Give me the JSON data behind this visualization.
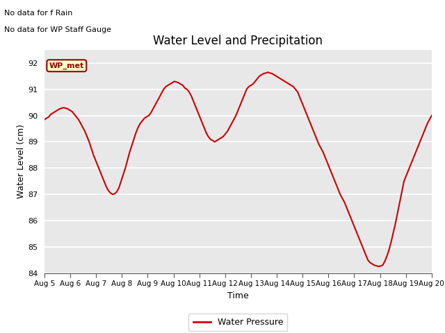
{
  "title": "Water Level and Precipitation",
  "xlabel": "Time",
  "ylabel": "Water Level (cm)",
  "ylim": [
    84.0,
    92.5
  ],
  "yticks": [
    84.0,
    85.0,
    86.0,
    87.0,
    88.0,
    89.0,
    90.0,
    91.0,
    92.0
  ],
  "line_color": "#cc0000",
  "line_width": 1.5,
  "bg_color": "#e8e8e8",
  "fig_bg_color": "#ffffff",
  "annotations": [
    "No data for f Rain",
    "No data for WP Staff Gauge"
  ],
  "legend_label": "Water Pressure",
  "legend_box_color": "#ffffcc",
  "legend_box_edge_color": "#990000",
  "wp_met_label": "WP_met",
  "x_tick_labels": [
    "Aug 5",
    "Aug 6",
    "Aug 7",
    "Aug 8",
    "Aug 9",
    "Aug 10",
    "Aug 11",
    "Aug 12",
    "Aug 13",
    "Aug 14",
    "Aug 15",
    "Aug 16",
    "Aug 17",
    "Aug 18",
    "Aug 19",
    "Aug 20"
  ],
  "x_tick_positions": [
    0,
    1,
    2,
    3,
    4,
    5,
    6,
    7,
    8,
    9,
    10,
    11,
    12,
    13,
    14,
    15
  ],
  "water_pressure": [
    89.85,
    89.9,
    89.95,
    90.05,
    90.1,
    90.15,
    90.2,
    90.25,
    90.28,
    90.3,
    90.28,
    90.25,
    90.2,
    90.15,
    90.05,
    89.95,
    89.85,
    89.7,
    89.55,
    89.4,
    89.2,
    89.0,
    88.75,
    88.5,
    88.3,
    88.1,
    87.9,
    87.7,
    87.5,
    87.3,
    87.15,
    87.05,
    87.0,
    87.02,
    87.1,
    87.25,
    87.5,
    87.75,
    88.0,
    88.3,
    88.6,
    88.85,
    89.1,
    89.35,
    89.55,
    89.7,
    89.8,
    89.9,
    89.95,
    90.0,
    90.1,
    90.25,
    90.4,
    90.55,
    90.7,
    90.85,
    91.0,
    91.1,
    91.15,
    91.2,
    91.25,
    91.3,
    91.28,
    91.25,
    91.2,
    91.15,
    91.05,
    91.0,
    90.9,
    90.75,
    90.55,
    90.35,
    90.15,
    89.95,
    89.75,
    89.55,
    89.35,
    89.2,
    89.1,
    89.05,
    89.0,
    89.05,
    89.1,
    89.15,
    89.2,
    89.3,
    89.4,
    89.55,
    89.7,
    89.85,
    90.0,
    90.2,
    90.4,
    90.6,
    90.8,
    91.0,
    91.1,
    91.15,
    91.2,
    91.3,
    91.4,
    91.5,
    91.55,
    91.6,
    91.62,
    91.65,
    91.62,
    91.6,
    91.55,
    91.5,
    91.45,
    91.4,
    91.35,
    91.3,
    91.25,
    91.2,
    91.15,
    91.1,
    91.0,
    90.9,
    90.7,
    90.5,
    90.3,
    90.1,
    89.9,
    89.7,
    89.5,
    89.3,
    89.1,
    88.9,
    88.75,
    88.6,
    88.4,
    88.2,
    88.0,
    87.8,
    87.6,
    87.4,
    87.2,
    87.0,
    86.85,
    86.7,
    86.5,
    86.3,
    86.1,
    85.9,
    85.7,
    85.5,
    85.3,
    85.1,
    84.9,
    84.7,
    84.5,
    84.4,
    84.35,
    84.3,
    84.28,
    84.25,
    84.27,
    84.3,
    84.45,
    84.65,
    84.9,
    85.2,
    85.55,
    85.9,
    86.3,
    86.7,
    87.1,
    87.5,
    87.7,
    87.9,
    88.1,
    88.3,
    88.5,
    88.7,
    88.9,
    89.1,
    89.3,
    89.5,
    89.7,
    89.85,
    90.0
  ]
}
